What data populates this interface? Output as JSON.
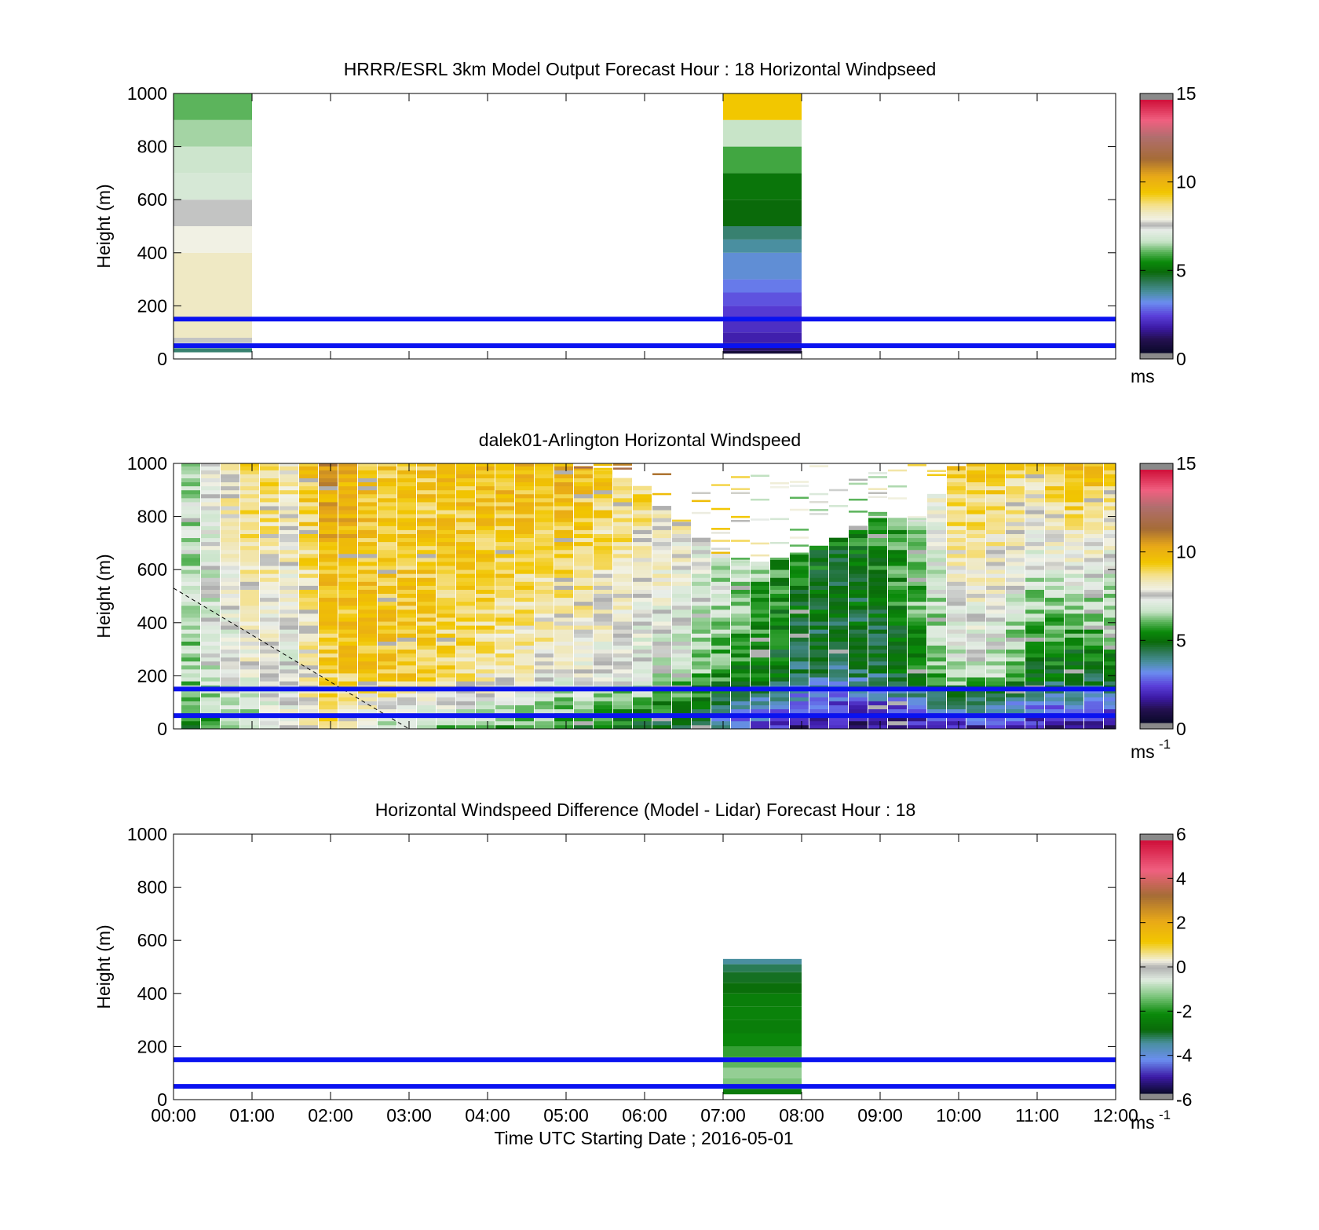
{
  "figure": {
    "xlabel": "Time UTC  Starting Date ; 2016-05-01",
    "xticks": [
      "00:00",
      "01:00",
      "02:00",
      "03:00",
      "04:00",
      "05:00",
      "06:00",
      "07:00",
      "08:00",
      "09:00",
      "10:00",
      "11:00",
      "12:00"
    ]
  },
  "chart_data": [
    {
      "type": "heatmap",
      "title": "HRRR/ESRL 3km Model Output   Forecast Hour : 18 Horizontal Windpseed",
      "ylabel": "Height (m)",
      "xlim": [
        "00:00",
        "12:00"
      ],
      "ylim": [
        0,
        1000
      ],
      "yticks": [
        "0",
        "200",
        "400",
        "600",
        "800",
        "1000"
      ],
      "colorbar": {
        "min": 0,
        "max": 15,
        "ticks": [
          "0",
          "5",
          "10",
          "15"
        ],
        "unit": "ms",
        "unit_sup": ""
      },
      "reference_lines_m": [
        50,
        150
      ],
      "columns": [
        {
          "t0": 0.0,
          "t1": 1.0,
          "cells": [
            {
              "h0": 25,
              "h1": 40,
              "v": 4.0
            },
            {
              "h0": 40,
              "h1": 60,
              "v": 7.0
            },
            {
              "h0": 60,
              "h1": 80,
              "v": 7.5
            },
            {
              "h0": 80,
              "h1": 400,
              "v": 8.3
            },
            {
              "h0": 400,
              "h1": 500,
              "v": 7.9
            },
            {
              "h0": 500,
              "h1": 600,
              "v": 7.5
            },
            {
              "h0": 600,
              "h1": 700,
              "v": 6.9
            },
            {
              "h0": 700,
              "h1": 800,
              "v": 6.7
            },
            {
              "h0": 800,
              "h1": 900,
              "v": 6.4
            },
            {
              "h0": 900,
              "h1": 1000,
              "v": 6.0
            }
          ]
        },
        {
          "t0": 7.0,
          "t1": 8.0,
          "cells": [
            {
              "h0": 20,
              "h1": 30,
              "v": 0.3
            },
            {
              "h0": 30,
              "h1": 60,
              "v": 1.0
            },
            {
              "h0": 60,
              "h1": 100,
              "v": 1.6
            },
            {
              "h0": 100,
              "h1": 150,
              "v": 1.9
            },
            {
              "h0": 150,
              "h1": 200,
              "v": 2.1
            },
            {
              "h0": 200,
              "h1": 250,
              "v": 2.4
            },
            {
              "h0": 250,
              "h1": 300,
              "v": 2.8
            },
            {
              "h0": 300,
              "h1": 400,
              "v": 3.2
            },
            {
              "h0": 400,
              "h1": 450,
              "v": 3.6
            },
            {
              "h0": 450,
              "h1": 500,
              "v": 4.0
            },
            {
              "h0": 500,
              "h1": 600,
              "v": 4.8
            },
            {
              "h0": 600,
              "h1": 700,
              "v": 5.0
            },
            {
              "h0": 700,
              "h1": 800,
              "v": 5.8
            },
            {
              "h0": 800,
              "h1": 900,
              "v": 6.6
            },
            {
              "h0": 900,
              "h1": 1000,
              "v": 9.5
            }
          ]
        }
      ]
    },
    {
      "type": "heatmap",
      "title": "dalek01-Arlington  Horizontal Windspeed",
      "ylabel": "Height (m)",
      "xlim": [
        "00:00",
        "12:00"
      ],
      "ylim": [
        0,
        1000
      ],
      "yticks": [
        "0",
        "200",
        "400",
        "600",
        "800",
        "1000"
      ],
      "colorbar": {
        "min": 0,
        "max": 15,
        "ticks": [
          "0",
          "5",
          "10",
          "15"
        ],
        "unit": "ms",
        "unit_sup": "-1"
      },
      "reference_lines_m": [
        50,
        150
      ],
      "time_step_h": 0.25,
      "profiles_by_hour": [
        {
          "hour": 0.0,
          "top": 1000,
          "v200": 6.0,
          "vTop": 6.2
        },
        {
          "hour": 0.5,
          "top": 1000,
          "v200": 6.8,
          "vTop": 7.6
        },
        {
          "hour": 1.0,
          "top": 1000,
          "v200": 7.6,
          "vTop": 9.3
        },
        {
          "hour": 1.5,
          "top": 1000,
          "v200": 7.2,
          "vTop": 8.6
        },
        {
          "hour": 2.0,
          "top": 1000,
          "v200": 9.2,
          "vTop": 10.8
        },
        {
          "hour": 2.5,
          "top": 1000,
          "v200": 9.6,
          "vTop": 9.6
        },
        {
          "hour": 3.0,
          "top": 1000,
          "v200": 9.4,
          "vTop": 9.4
        },
        {
          "hour": 4.0,
          "top": 1000,
          "v200": 8.6,
          "vTop": 9.9
        },
        {
          "hour": 5.0,
          "top": 1000,
          "v200": 7.6,
          "vTop": 10.2
        },
        {
          "hour": 5.5,
          "top": 960,
          "v200": 7.4,
          "vTop": 9.4
        },
        {
          "hour": 6.0,
          "top": 900,
          "v200": 7.0,
          "vTop": 9.0
        },
        {
          "hour": 6.5,
          "top": 760,
          "v200": 6.6,
          "vTop": 8.0
        },
        {
          "hour": 7.0,
          "top": 640,
          "v200": 5.6,
          "vTop": 7.0
        },
        {
          "hour": 7.5,
          "top": 620,
          "v200": 5.0,
          "vTop": 6.2
        },
        {
          "hour": 8.0,
          "top": 660,
          "v200": 4.2,
          "vTop": 5.2
        },
        {
          "hour": 8.5,
          "top": 720,
          "v200": 4.0,
          "vTop": 5.0
        },
        {
          "hour": 9.0,
          "top": 800,
          "v200": 4.2,
          "vTop": 5.6
        },
        {
          "hour": 9.5,
          "top": 780,
          "v200": 5.4,
          "vTop": 6.4
        },
        {
          "hour": 10.0,
          "top": 1000,
          "v200": 6.8,
          "vTop": 9.6
        },
        {
          "hour": 10.5,
          "top": 1000,
          "v200": 6.6,
          "vTop": 9.4
        },
        {
          "hour": 11.0,
          "top": 1000,
          "v200": 5.0,
          "vTop": 9.0
        },
        {
          "hour": 11.5,
          "top": 1000,
          "v200": 4.6,
          "vTop": 10.4
        },
        {
          "hour": 12.0,
          "top": 1000,
          "v200": 5.0,
          "vTop": 9.4
        }
      ],
      "low_level_by_hour": [
        {
          "hour": 0.0,
          "v": 5.0
        },
        {
          "hour": 1.0,
          "v": 6.5
        },
        {
          "hour": 2.0,
          "v": 9.0
        },
        {
          "hour": 2.5,
          "v": 7.0
        },
        {
          "hour": 3.0,
          "v": 6.4
        },
        {
          "hour": 4.0,
          "v": 6.0
        },
        {
          "hour": 5.0,
          "v": 5.2
        },
        {
          "hour": 6.0,
          "v": 4.8
        },
        {
          "hour": 7.0,
          "v": 3.2
        },
        {
          "hour": 7.5,
          "v": 2.0
        },
        {
          "hour": 8.0,
          "v": 1.3
        },
        {
          "hour": 9.0,
          "v": 1.0
        },
        {
          "hour": 10.0,
          "v": 1.8
        },
        {
          "hour": 11.0,
          "v": 1.6
        },
        {
          "hour": 12.0,
          "v": 1.4
        }
      ],
      "dashed_line": {
        "x": [
          "00:00",
          "03:00"
        ],
        "y": [
          530,
          0
        ]
      }
    },
    {
      "type": "heatmap",
      "title": "Horizontal Windspeed Difference (Model - Lidar) Forecast Hour : 18",
      "ylabel": "Height (m)",
      "xlim": [
        "00:00",
        "12:00"
      ],
      "ylim": [
        0,
        1000
      ],
      "yticks": [
        "0",
        "200",
        "400",
        "600",
        "800",
        "1000"
      ],
      "colorbar": {
        "min": -6,
        "max": 6,
        "ticks": [
          "-6",
          "-4",
          "-2",
          "0",
          "2",
          "4",
          "6"
        ],
        "unit": "ms",
        "unit_sup": "-1"
      },
      "reference_lines_m": [
        50,
        150
      ],
      "columns": [
        {
          "t0": 7.0,
          "t1": 8.0,
          "cells": [
            {
              "h0": 20,
              "h1": 40,
              "v": -2.6
            },
            {
              "h0": 40,
              "h1": 80,
              "v": -1.4
            },
            {
              "h0": 80,
              "h1": 120,
              "v": -1.2
            },
            {
              "h0": 120,
              "h1": 160,
              "v": -1.6
            },
            {
              "h0": 160,
              "h1": 200,
              "v": -1.9
            },
            {
              "h0": 200,
              "h1": 250,
              "v": -2.3
            },
            {
              "h0": 250,
              "h1": 300,
              "v": -2.5
            },
            {
              "h0": 300,
              "h1": 350,
              "v": -2.4
            },
            {
              "h0": 350,
              "h1": 400,
              "v": -2.5
            },
            {
              "h0": 400,
              "h1": 440,
              "v": -2.9
            },
            {
              "h0": 440,
              "h1": 480,
              "v": -3.1
            },
            {
              "h0": 480,
              "h1": 510,
              "v": -3.3
            },
            {
              "h0": 510,
              "h1": 530,
              "v": -3.6
            }
          ]
        }
      ]
    }
  ]
}
